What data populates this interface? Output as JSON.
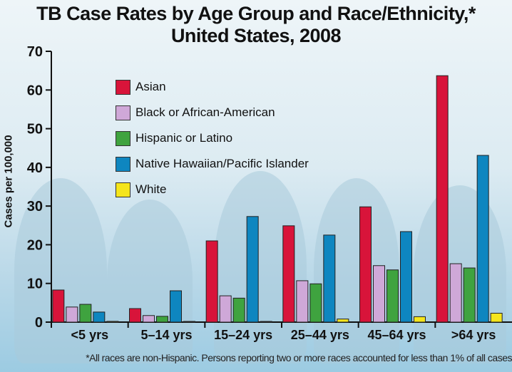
{
  "chart_data": {
    "type": "bar",
    "title": "TB Case Rates by Age Group and Race/Ethnicity,*",
    "subtitle": "United States, 2008",
    "xlabel": "",
    "ylabel": "Cases per 100,000",
    "ylim": [
      0,
      70
    ],
    "yticks": [
      "0",
      "10",
      "20",
      "30",
      "40",
      "50",
      "60",
      "70"
    ],
    "categories": [
      "<5 yrs",
      "5–14 yrs",
      "15–24 yrs",
      "25–44 yrs",
      "45–64 yrs",
      ">64 yrs"
    ],
    "legend_position": "top-left",
    "series": [
      {
        "name": "Asian",
        "color": "#d8143a",
        "values": [
          8.3,
          3.5,
          21.0,
          24.9,
          29.8,
          63.7
        ]
      },
      {
        "name": "Black or African-American",
        "color": "#cfa8d8",
        "values": [
          3.9,
          1.7,
          6.8,
          10.7,
          14.6,
          15.1
        ]
      },
      {
        "name": "Hispanic or Latino",
        "color": "#3fa33f",
        "values": [
          4.6,
          1.5,
          6.2,
          9.9,
          13.5,
          14.0
        ]
      },
      {
        "name": "Native Hawaiian/Pacific Islander",
        "color": "#0e86c0",
        "values": [
          2.6,
          8.1,
          27.3,
          22.5,
          23.4,
          43.1
        ]
      },
      {
        "name": "White",
        "color": "#f5e51c",
        "values": [
          0.2,
          0.0,
          0.1,
          0.8,
          1.4,
          2.3
        ]
      }
    ],
    "footnote": "*All races are non-Hispanic. Persons reporting two or more races accounted for less than 1% of all cases"
  }
}
